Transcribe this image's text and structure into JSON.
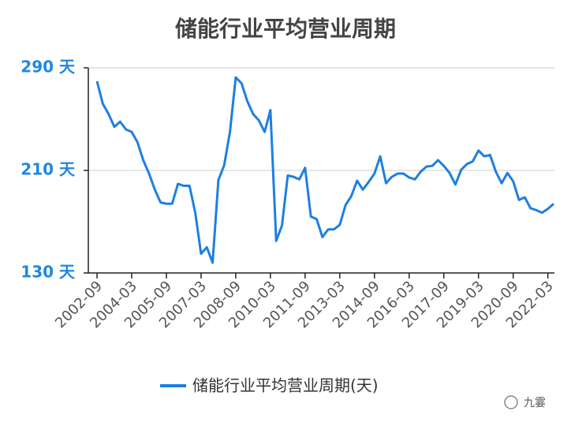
{
  "chart_data": {
    "type": "line",
    "title": "储能行业平均营业周期",
    "x": [
      "2002-09",
      "2002-12",
      "2003-03",
      "2003-06",
      "2003-09",
      "2003-12",
      "2004-03",
      "2004-06",
      "2004-09",
      "2004-12",
      "2005-03",
      "2005-06",
      "2005-09",
      "2005-12",
      "2006-03",
      "2006-06",
      "2006-09",
      "2006-12",
      "2007-03",
      "2007-06",
      "2007-09",
      "2007-12",
      "2008-03",
      "2008-06",
      "2008-09",
      "2008-12",
      "2009-03",
      "2009-06",
      "2009-09",
      "2009-12",
      "2010-03",
      "2010-06",
      "2010-09",
      "2010-12",
      "2011-03",
      "2011-06",
      "2011-09",
      "2011-12",
      "2012-03",
      "2012-06",
      "2012-09",
      "2012-12",
      "2013-03",
      "2013-06",
      "2013-09",
      "2013-12",
      "2014-03",
      "2014-06",
      "2014-09",
      "2014-12",
      "2015-03",
      "2015-06",
      "2015-09",
      "2015-12",
      "2016-03",
      "2016-06",
      "2016-09",
      "2016-12",
      "2017-03",
      "2017-06",
      "2017-09",
      "2017-12",
      "2018-03",
      "2018-06",
      "2018-09",
      "2018-12",
      "2019-03",
      "2019-06",
      "2019-09",
      "2019-12",
      "2020-03",
      "2020-06",
      "2020-09",
      "2020-12",
      "2021-03",
      "2021-06",
      "2021-09",
      "2021-12",
      "2022-03",
      "2022-06"
    ],
    "series": [
      {
        "name": "储能行业平均营业周期(天)",
        "color": "#1e7fe0",
        "values": [
          279.5,
          262,
          254,
          244,
          248,
          242,
          240,
          232,
          218,
          207.5,
          195,
          185,
          184,
          184,
          199.5,
          198,
          198,
          177,
          145,
          150,
          138,
          202.5,
          214,
          240,
          282.5,
          278,
          264,
          254,
          249,
          240,
          257,
          155,
          167,
          206,
          205,
          203,
          212,
          174,
          172,
          158,
          164,
          164,
          167.5,
          183,
          190,
          202,
          195,
          201,
          207.5,
          221,
          200,
          205,
          207.5,
          207.5,
          204.5,
          203,
          209,
          213,
          213.5,
          218,
          213.5,
          208,
          199,
          210.5,
          215,
          217,
          225.5,
          221,
          222,
          209,
          200,
          208,
          201.5,
          187,
          189,
          180.5,
          179,
          177,
          180,
          184
        ]
      }
    ],
    "ylim": [
      130,
      290
    ],
    "yticks": [
      {
        "value": 130,
        "label": "130 天"
      },
      {
        "value": 210,
        "label": "210 天"
      },
      {
        "value": 290,
        "label": "290 天"
      }
    ],
    "xticks": [
      "2002-09",
      "2004-03",
      "2005-09",
      "2007-03",
      "2008-09",
      "2010-03",
      "2011-09",
      "2013-03",
      "2014-09",
      "2016-03",
      "2017-09",
      "2019-03",
      "2020-09",
      "2022-03"
    ],
    "grid": true,
    "watermark": "九霎"
  }
}
